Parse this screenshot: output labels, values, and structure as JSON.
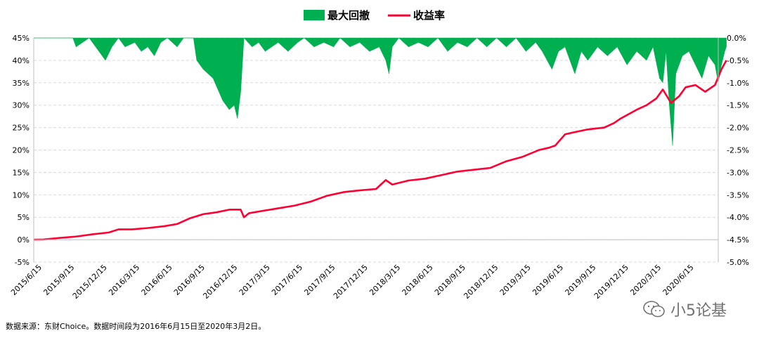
{
  "legend": {
    "drawdown_label": "最大回撤",
    "return_label": "收益率"
  },
  "source_note": "数据来源：东财Choice。数据时间段为2016年6月15日至2020年3月2日。",
  "watermark": {
    "icon": "wechat-icon",
    "text": "小5论基"
  },
  "colors": {
    "drawdown": "#00b050",
    "return_line": "#ff0033",
    "grid": "#d9d9d9"
  },
  "chart_data": {
    "type": "area",
    "left_axis": {
      "ylim": [
        -5,
        45
      ],
      "ticks": [
        "-5%",
        "0%",
        "5%",
        "10%",
        "15%",
        "20%",
        "25%",
        "30%",
        "35%",
        "40%",
        "45%"
      ]
    },
    "right_axis": {
      "ylim": [
        -5.0,
        0.0
      ],
      "ticks": [
        "-5.0%",
        "-4.5%",
        "-4.0%",
        "-3.5%",
        "-3.0%",
        "-2.5%",
        "-2.0%",
        "-1.5%",
        "-1.0%",
        "-0.5%",
        "0.0%"
      ]
    },
    "x_ticks": [
      "2015/6/15",
      "2015/9/15",
      "2015/12/15",
      "2016/3/15",
      "2016/6/15",
      "2016/9/15",
      "2016/12/15",
      "2017/3/15",
      "2017/6/15",
      "2017/9/15",
      "2017/12/15",
      "2018/3/15",
      "2018/6/15",
      "2018/9/15",
      "2018/12/15",
      "2019/3/15",
      "2019/6/15",
      "2019/9/15",
      "2019/12/15",
      "2020/3/15",
      "2020/6/15"
    ],
    "grid": true,
    "legend_position": "top-center",
    "series": [
      {
        "name": "收益率",
        "axis": "left",
        "kind": "line",
        "points": [
          [
            0,
            0
          ],
          [
            0.3,
            0.05
          ],
          [
            0.8,
            0.4
          ],
          [
            1.3,
            0.7
          ],
          [
            1.8,
            1.2
          ],
          [
            2.3,
            1.6
          ],
          [
            2.6,
            2.3
          ],
          [
            3.0,
            2.3
          ],
          [
            3.5,
            2.6
          ],
          [
            4.0,
            3.0
          ],
          [
            4.4,
            3.5
          ],
          [
            4.8,
            4.8
          ],
          [
            5.2,
            5.7
          ],
          [
            5.6,
            6.1
          ],
          [
            6.0,
            6.7
          ],
          [
            6.35,
            6.7
          ],
          [
            6.45,
            5.0
          ],
          [
            6.6,
            5.9
          ],
          [
            7.0,
            6.4
          ],
          [
            7.5,
            7.0
          ],
          [
            8.0,
            7.6
          ],
          [
            8.5,
            8.5
          ],
          [
            9.0,
            9.8
          ],
          [
            9.5,
            10.6
          ],
          [
            10.0,
            11.0
          ],
          [
            10.5,
            11.3
          ],
          [
            10.8,
            13.3
          ],
          [
            11.0,
            12.3
          ],
          [
            11.5,
            13.2
          ],
          [
            12.0,
            13.6
          ],
          [
            12.5,
            14.4
          ],
          [
            13.0,
            15.2
          ],
          [
            13.5,
            15.6
          ],
          [
            14.0,
            16.0
          ],
          [
            14.5,
            17.5
          ],
          [
            15.0,
            18.5
          ],
          [
            15.5,
            20.0
          ],
          [
            15.8,
            20.5
          ],
          [
            16.0,
            21.0
          ],
          [
            16.3,
            23.5
          ],
          [
            16.6,
            24.0
          ],
          [
            17.0,
            24.6
          ],
          [
            17.5,
            25.0
          ],
          [
            17.8,
            26.0
          ],
          [
            18.0,
            27.0
          ],
          [
            18.5,
            29.0
          ],
          [
            18.8,
            30.0
          ],
          [
            19.1,
            31.5
          ],
          [
            19.3,
            33.5
          ],
          [
            19.55,
            30.5
          ],
          [
            19.8,
            32.0
          ],
          [
            20.0,
            34.0
          ],
          [
            20.3,
            34.5
          ],
          [
            20.6,
            33.0
          ],
          [
            20.9,
            34.5
          ],
          [
            21.1,
            38.0
          ],
          [
            21.25,
            40.0
          ]
        ]
      },
      {
        "name": "最大回撤",
        "axis": "right",
        "kind": "area",
        "points": [
          [
            0,
            0
          ],
          [
            1.2,
            0
          ],
          [
            1.3,
            -0.2
          ],
          [
            1.5,
            -0.1
          ],
          [
            1.7,
            0
          ],
          [
            2.0,
            -0.3
          ],
          [
            2.2,
            -0.5
          ],
          [
            2.4,
            -0.2
          ],
          [
            2.6,
            0
          ],
          [
            2.8,
            -0.2
          ],
          [
            3.1,
            -0.1
          ],
          [
            3.3,
            -0.3
          ],
          [
            3.5,
            -0.2
          ],
          [
            3.7,
            -0.4
          ],
          [
            3.9,
            -0.1
          ],
          [
            4.1,
            0
          ],
          [
            4.4,
            -0.2
          ],
          [
            4.6,
            0
          ],
          [
            4.9,
            0
          ],
          [
            5.0,
            -0.5
          ],
          [
            5.2,
            -0.7
          ],
          [
            5.5,
            -0.9
          ],
          [
            5.8,
            -1.4
          ],
          [
            6.0,
            -1.6
          ],
          [
            6.15,
            -1.5
          ],
          [
            6.25,
            -1.8
          ],
          [
            6.35,
            -1.2
          ],
          [
            6.45,
            0
          ],
          [
            6.7,
            -0.2
          ],
          [
            6.9,
            -0.1
          ],
          [
            7.1,
            -0.3
          ],
          [
            7.3,
            -0.2
          ],
          [
            7.5,
            -0.1
          ],
          [
            7.8,
            -0.3
          ],
          [
            8.1,
            -0.1
          ],
          [
            8.3,
            0
          ],
          [
            8.6,
            -0.2
          ],
          [
            8.9,
            -0.1
          ],
          [
            9.2,
            -0.2
          ],
          [
            9.4,
            0
          ],
          [
            9.7,
            -0.2
          ],
          [
            10.0,
            -0.1
          ],
          [
            10.3,
            -0.3
          ],
          [
            10.6,
            -0.2
          ],
          [
            10.8,
            -0.5
          ],
          [
            10.9,
            -0.8
          ],
          [
            11.0,
            -0.2
          ],
          [
            11.2,
            0
          ],
          [
            11.5,
            -0.2
          ],
          [
            11.8,
            -0.1
          ],
          [
            12.1,
            -0.2
          ],
          [
            12.4,
            0
          ],
          [
            12.7,
            -0.3
          ],
          [
            13.0,
            -0.1
          ],
          [
            13.3,
            -0.2
          ],
          [
            13.6,
            0
          ],
          [
            13.9,
            -0.2
          ],
          [
            14.2,
            0
          ],
          [
            14.5,
            -0.2
          ],
          [
            14.8,
            0
          ],
          [
            15.1,
            -0.3
          ],
          [
            15.4,
            -0.1
          ],
          [
            15.6,
            -0.3
          ],
          [
            15.9,
            -0.7
          ],
          [
            16.1,
            -0.3
          ],
          [
            16.3,
            -0.2
          ],
          [
            16.6,
            -0.8
          ],
          [
            16.8,
            -0.3
          ],
          [
            17.0,
            -0.5
          ],
          [
            17.3,
            -0.2
          ],
          [
            17.6,
            -0.4
          ],
          [
            17.9,
            -0.2
          ],
          [
            18.2,
            -0.6
          ],
          [
            18.5,
            -0.3
          ],
          [
            18.8,
            -0.5
          ],
          [
            19.0,
            -0.2
          ],
          [
            19.2,
            -0.9
          ],
          [
            19.3,
            -1.0
          ],
          [
            19.4,
            -0.3
          ],
          [
            19.5,
            -1.5
          ],
          [
            19.6,
            -2.4
          ],
          [
            19.7,
            -0.8
          ],
          [
            19.9,
            -0.4
          ],
          [
            20.1,
            -0.3
          ],
          [
            20.3,
            -0.6
          ],
          [
            20.5,
            -0.9
          ],
          [
            20.7,
            -0.4
          ],
          [
            20.9,
            -0.6
          ],
          [
            21.0,
            -1.0
          ],
          [
            21.1,
            -0.6
          ],
          [
            21.2,
            -0.3
          ],
          [
            21.25,
            -0.2
          ]
        ]
      }
    ]
  }
}
